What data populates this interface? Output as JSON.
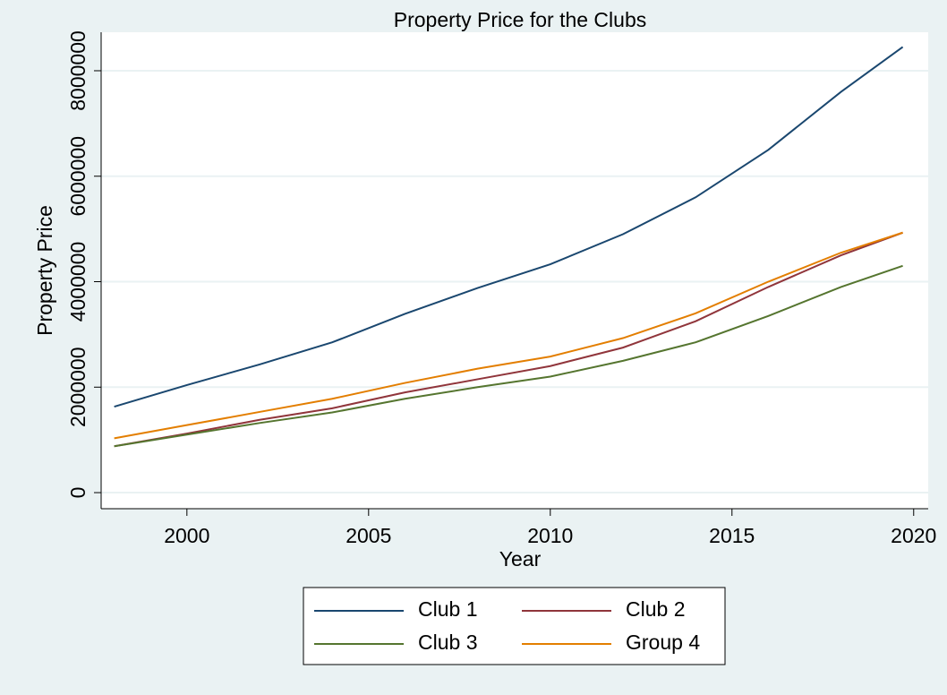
{
  "chart_data": {
    "type": "line",
    "title": "Property Price for the Clubs",
    "x_label": "Year",
    "y_label": "Property Price",
    "x": [
      1998,
      2000,
      2002,
      2004,
      2006,
      2008,
      2010,
      2012,
      2014,
      2016,
      2018,
      2019.7
    ],
    "series": [
      {
        "name": "Club 1",
        "color": "#1a476f",
        "values": [
          1630000,
          2040000,
          2430000,
          2850000,
          3390000,
          3880000,
          4330000,
          4900000,
          5600000,
          6500000,
          7600000,
          8450000
        ]
      },
      {
        "name": "Club 2",
        "color": "#90353b",
        "values": [
          880000,
          1120000,
          1380000,
          1600000,
          1900000,
          2150000,
          2400000,
          2750000,
          3250000,
          3900000,
          4500000,
          4930000
        ]
      },
      {
        "name": "Club 3",
        "color": "#55752f",
        "values": [
          880000,
          1100000,
          1320000,
          1520000,
          1780000,
          2000000,
          2200000,
          2500000,
          2850000,
          3350000,
          3900000,
          4300000
        ]
      },
      {
        "name": "Group 4",
        "color": "#e37e00",
        "values": [
          1030000,
          1280000,
          1530000,
          1780000,
          2080000,
          2350000,
          2580000,
          2930000,
          3400000,
          4000000,
          4550000,
          4930000
        ]
      }
    ],
    "xlim": [
      1997.64,
      2020.4
    ],
    "ylim": [
      -305000,
      8730000
    ],
    "xticks": [
      2000,
      2005,
      2010,
      2015,
      2020
    ],
    "yticks": [
      0,
      2000000,
      4000000,
      6000000,
      8000000
    ],
    "grid": true
  }
}
